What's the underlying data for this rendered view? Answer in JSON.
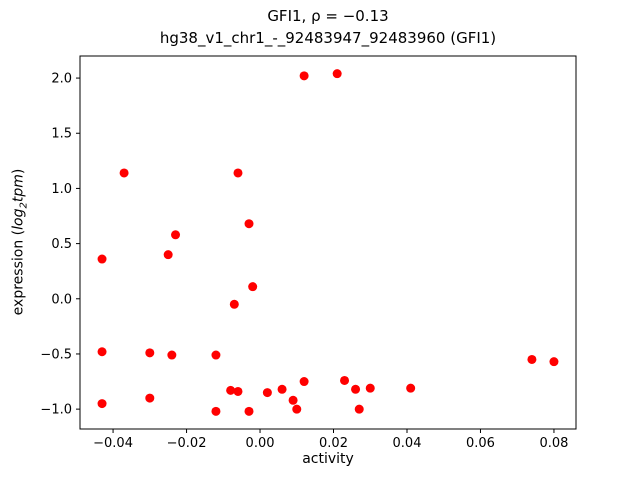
{
  "figure": {
    "title_line1": "GFI1, ρ = −0.13",
    "title_line2": "hg38_v1_chr1_-_92483947_92483960 (GFI1)",
    "xlabel": "activity",
    "ylabel_prefix": "expression (",
    "ylabel_log": "log",
    "ylabel_sub": "2",
    "ylabel_var": "tpm",
    "ylabel_suffix": ")"
  },
  "chart_data": {
    "type": "scatter",
    "title": "GFI1, ρ = −0.13 / hg38_v1_chr1_-_92483947_92483960 (GFI1)",
    "xlabel": "activity",
    "ylabel": "expression (log2 tpm)",
    "legend": "none",
    "grid": false,
    "marker_color": "#ff0000",
    "xlim": [
      -0.049,
      0.086
    ],
    "ylim": [
      -1.18,
      2.2
    ],
    "xticks": {
      "values": [
        -0.04,
        -0.02,
        0.0,
        0.02,
        0.04,
        0.06,
        0.08
      ],
      "labels": [
        "−0.04",
        "−0.02",
        "0.00",
        "0.02",
        "0.04",
        "0.06",
        "0.08"
      ]
    },
    "yticks": {
      "values": [
        -1.0,
        -0.5,
        0.0,
        0.5,
        1.0,
        1.5,
        2.0
      ],
      "labels": [
        "−1.0",
        "−0.5",
        "0.0",
        "0.5",
        "1.0",
        "1.5",
        "2.0"
      ]
    },
    "points": [
      [
        0.012,
        2.02
      ],
      [
        0.021,
        2.04
      ],
      [
        -0.037,
        1.14
      ],
      [
        -0.006,
        1.14
      ],
      [
        -0.003,
        0.68
      ],
      [
        -0.023,
        0.58
      ],
      [
        -0.025,
        0.4
      ],
      [
        -0.043,
        0.36
      ],
      [
        -0.002,
        0.11
      ],
      [
        -0.007,
        -0.05
      ],
      [
        -0.043,
        -0.48
      ],
      [
        -0.03,
        -0.49
      ],
      [
        -0.024,
        -0.51
      ],
      [
        -0.012,
        -0.51
      ],
      [
        0.074,
        -0.55
      ],
      [
        0.08,
        -0.57
      ],
      [
        0.023,
        -0.74
      ],
      [
        0.012,
        -0.75
      ],
      [
        0.041,
        -0.81
      ],
      [
        0.03,
        -0.81
      ],
      [
        0.026,
        -0.82
      ],
      [
        0.006,
        -0.82
      ],
      [
        -0.008,
        -0.83
      ],
      [
        -0.006,
        -0.84
      ],
      [
        0.002,
        -0.85
      ],
      [
        -0.03,
        -0.9
      ],
      [
        0.009,
        -0.92
      ],
      [
        -0.043,
        -0.95
      ],
      [
        0.027,
        -1.0
      ],
      [
        0.01,
        -1.0
      ],
      [
        -0.003,
        -1.02
      ],
      [
        -0.012,
        -1.02
      ]
    ]
  }
}
